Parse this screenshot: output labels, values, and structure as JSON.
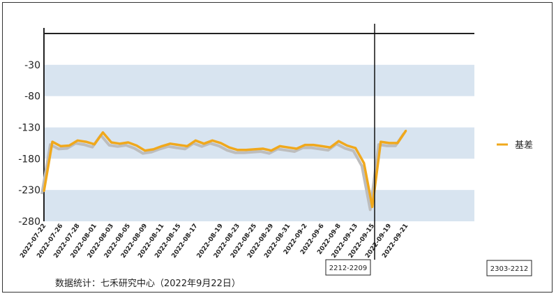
{
  "chart_data": {
    "type": "line",
    "title": "",
    "xlabel": "",
    "ylabel": "",
    "ylim": [
      -280,
      20
    ],
    "yticks": [
      -30,
      -80,
      -130,
      -180,
      -230,
      -280
    ],
    "grid": "alternating horizontal bands",
    "legend_position": "right",
    "x_tick_labels": [
      "2022-07-22",
      "2022-07-26",
      "2022-07-28",
      "2022-08-01",
      "2022-08-03",
      "2022-08-05",
      "2022-08-09",
      "2022-08-11",
      "2022-08-15",
      "2022-08-17",
      "2022-08-19",
      "2022-08-23",
      "2022-08-25",
      "2022-08-29",
      "2022-08-31",
      "2022-09-2",
      "2022-09-6",
      "2022-09-8",
      "2022-09-13",
      "2022-09-15",
      "2022-09-19",
      "2022-09-21"
    ],
    "series": [
      {
        "name": "基差",
        "color": "#f0a81c",
        "values": [
          -232,
          -153,
          -160,
          -159,
          -151,
          -153,
          -157,
          -138,
          -154,
          -156,
          -154,
          -159,
          -167,
          -165,
          -160,
          -156,
          -158,
          -160,
          -151,
          -156,
          -151,
          -155,
          -162,
          -166,
          -166,
          -165,
          -164,
          -167,
          -160,
          -162,
          -164,
          -158,
          -158,
          -160,
          -162,
          -152,
          -159,
          -163,
          -187,
          -257,
          -153,
          -155,
          -155,
          -135
        ]
      }
    ],
    "annotations": [
      {
        "label": "2212-2209",
        "at_index": 39
      },
      {
        "label": "2303-2212",
        "at_index": null
      }
    ]
  },
  "source_text": "数据统计：七禾研究中心（2022年9月22日）",
  "legend": {
    "label": "基差"
  }
}
